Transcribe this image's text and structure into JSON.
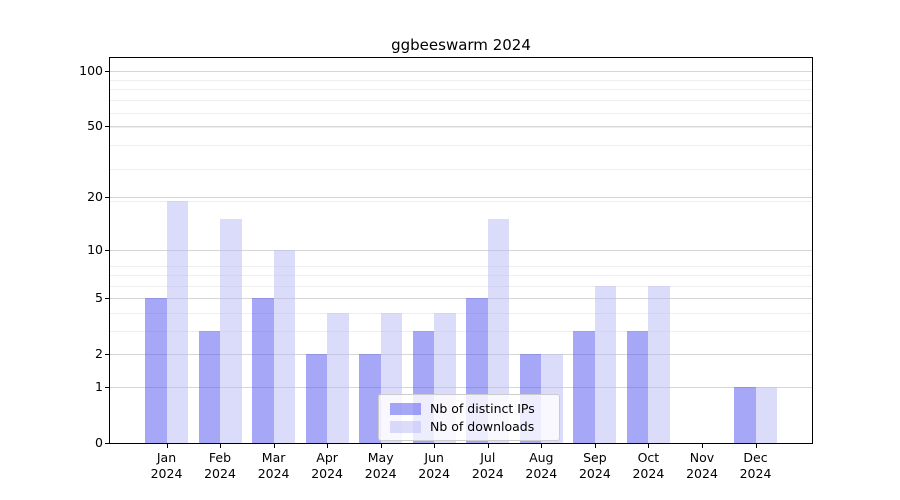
{
  "title": "ggbeeswarm 2024",
  "chart_data": {
    "type": "bar",
    "title": "ggbeeswarm 2024",
    "categories": [
      "Jan",
      "Feb",
      "Mar",
      "Apr",
      "May",
      "Jun",
      "Jul",
      "Aug",
      "Sep",
      "Oct",
      "Nov",
      "Dec"
    ],
    "category_year": "2024",
    "series": [
      {
        "name": "Nb of distinct IPs",
        "color": "#a7a7f7",
        "fill": "rgba(79,79,239,0.5)",
        "values": [
          5,
          3,
          5,
          2,
          2,
          3,
          5,
          2,
          3,
          3,
          0,
          1
        ]
      },
      {
        "name": "Nb of downloads",
        "color": "#dbdbfa",
        "fill": "rgba(183,183,245,0.5)",
        "values": [
          19,
          15,
          10,
          4,
          4,
          4,
          15,
          2,
          6,
          6,
          0,
          1
        ]
      }
    ],
    "xlabel": "",
    "ylabel": "",
    "y_scale": "log1p",
    "y_ticks": [
      100,
      50,
      20,
      10,
      5,
      2,
      1,
      0
    ],
    "y_minor_gridlines": [
      2,
      3,
      4,
      5,
      6,
      7,
      8,
      19,
      29,
      39,
      49,
      59,
      69,
      79,
      89
    ],
    "y_max": 117,
    "grid": true,
    "legend_position": "lower center"
  },
  "colors": {
    "axis": "#000000",
    "grid_major": "#d6d6d6",
    "grid_minor": "#eeeeee",
    "legend_border": "#cccccc",
    "legend_background": "#ffffff"
  }
}
